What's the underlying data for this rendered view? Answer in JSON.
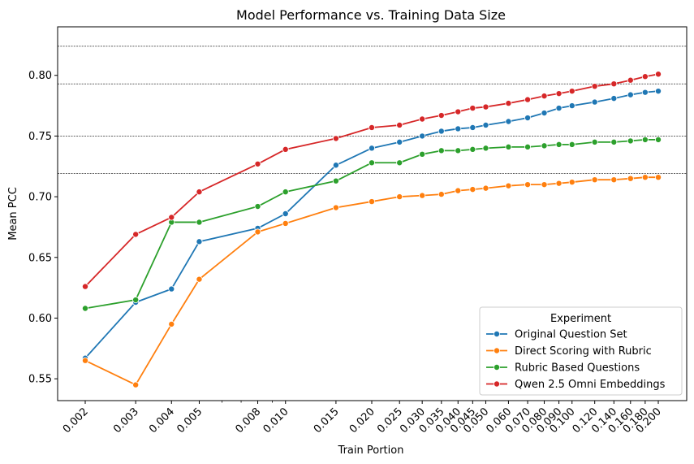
{
  "chart_data": {
    "type": "line",
    "title": "Model Performance vs. Training Data Size",
    "xlabel": "Train Portion",
    "ylabel": "Mean PCC",
    "x_scale": "log",
    "x": [
      0.002,
      0.003,
      0.004,
      0.005,
      0.008,
      0.01,
      0.015,
      0.02,
      0.025,
      0.03,
      0.035,
      0.04,
      0.045,
      0.05,
      0.06,
      0.07,
      0.08,
      0.09,
      0.1,
      0.12,
      0.14,
      0.16,
      0.18,
      0.2
    ],
    "x_tick_labels": [
      "0.002",
      "0.003",
      "0.004",
      "0.005",
      "0.008",
      "0.010",
      "0.015",
      "0.020",
      "0.025",
      "0.030",
      "0.035",
      "0.040",
      "0.045",
      "0.050",
      "0.060",
      "0.070",
      "0.080",
      "0.090",
      "0.100",
      "0.120",
      "0.140",
      "0.160",
      "0.180",
      "0.200"
    ],
    "ylim": [
      0.532,
      0.84
    ],
    "y_ticks": [
      0.55,
      0.6,
      0.65,
      0.7,
      0.75,
      0.8
    ],
    "y_tick_labels": [
      "0.55",
      "0.60",
      "0.65",
      "0.70",
      "0.75",
      "0.80"
    ],
    "reference_lines": [
      0.719,
      0.75,
      0.793,
      0.824
    ],
    "legend": {
      "title": "Experiment",
      "placement": "lower-right"
    },
    "series": [
      {
        "name": "Original Question Set",
        "color": "#1f77b4",
        "values": [
          0.567,
          0.613,
          0.624,
          0.663,
          0.674,
          0.686,
          0.726,
          0.74,
          0.745,
          0.75,
          0.754,
          0.756,
          0.757,
          0.759,
          0.762,
          0.765,
          0.769,
          0.773,
          0.775,
          0.778,
          0.781,
          0.784,
          0.786,
          0.787
        ]
      },
      {
        "name": "Direct Scoring with Rubric",
        "color": "#ff7f0e",
        "values": [
          0.565,
          0.545,
          0.595,
          0.632,
          0.671,
          0.678,
          0.691,
          0.696,
          0.7,
          0.701,
          0.702,
          0.705,
          0.706,
          0.707,
          0.709,
          0.71,
          0.71,
          0.711,
          0.712,
          0.714,
          0.714,
          0.715,
          0.716,
          0.716
        ]
      },
      {
        "name": "Rubric Based Questions",
        "color": "#2ca02c",
        "values": [
          0.608,
          0.615,
          0.679,
          0.679,
          0.692,
          0.704,
          0.713,
          0.728,
          0.728,
          0.735,
          0.738,
          0.738,
          0.739,
          0.74,
          0.741,
          0.741,
          0.742,
          0.743,
          0.743,
          0.745,
          0.745,
          0.746,
          0.747,
          0.747
        ]
      },
      {
        "name": "Qwen 2.5 Omni Embeddings",
        "color": "#d62728",
        "values": [
          0.626,
          0.669,
          0.683,
          0.704,
          0.727,
          0.739,
          0.748,
          0.757,
          0.759,
          0.764,
          0.767,
          0.77,
          0.773,
          0.774,
          0.777,
          0.78,
          0.783,
          0.785,
          0.787,
          0.791,
          0.793,
          0.796,
          0.799,
          0.801
        ]
      }
    ]
  }
}
